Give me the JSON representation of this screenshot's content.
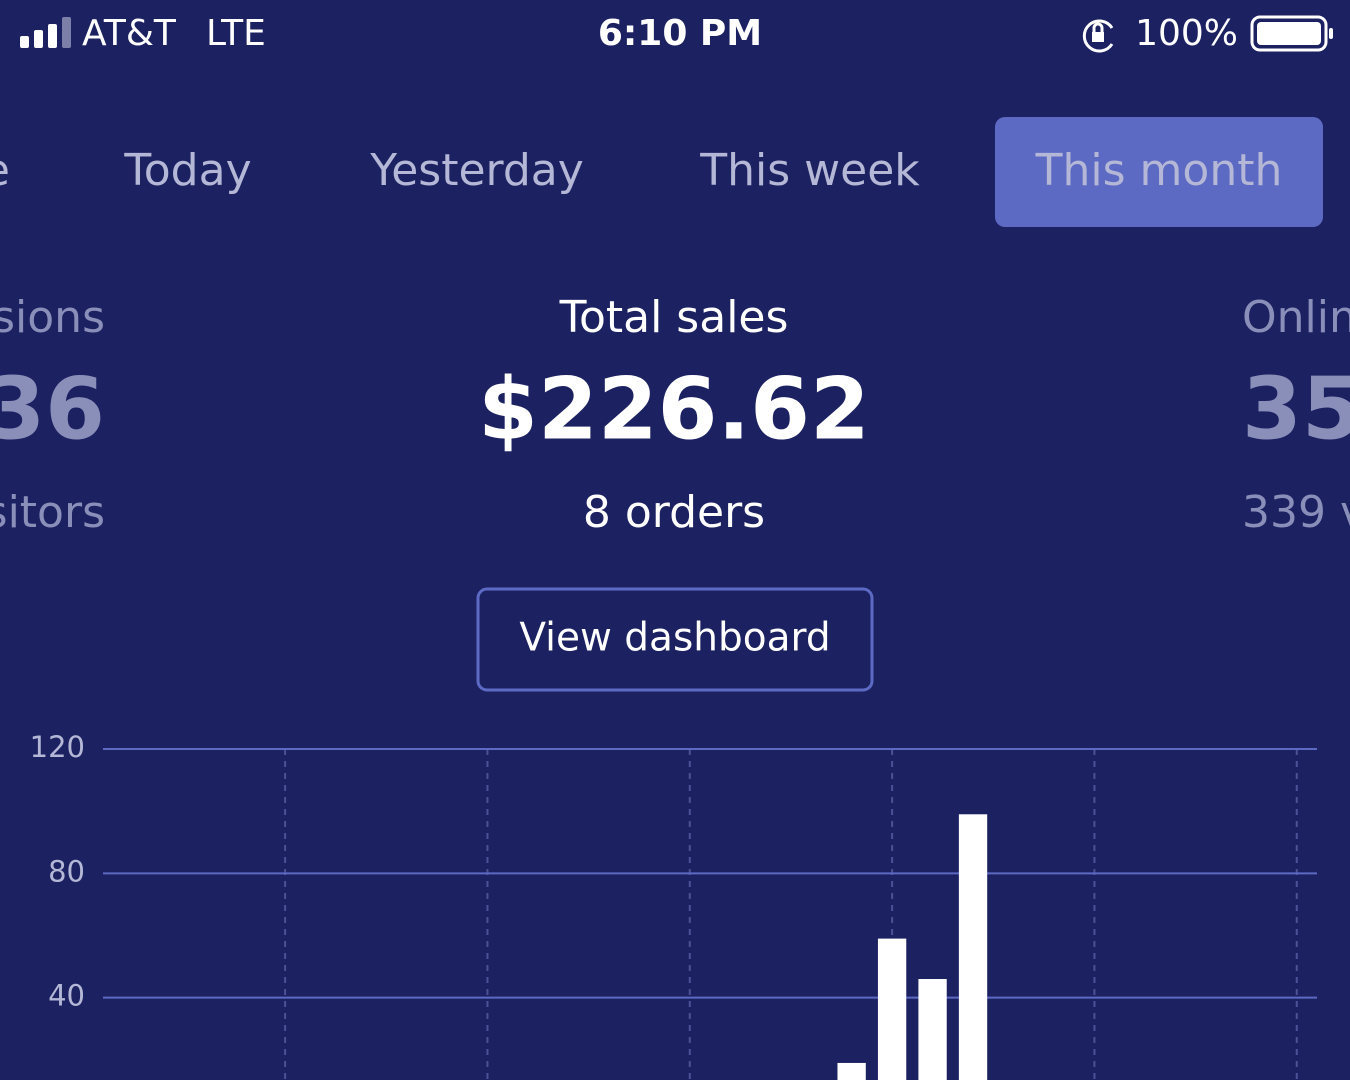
{
  "status_bar": {
    "carrier": "AT&T",
    "network": "LTE",
    "time": "6:10 PM",
    "battery": "100%"
  },
  "tabs": {
    "items": [
      "e",
      "Today",
      "Yesterday",
      "This week",
      "This month"
    ],
    "active": 4
  },
  "stats": {
    "left": {
      "title": "sions",
      "value": "36",
      "subtitle": "sitors"
    },
    "center": {
      "title": "Total sales",
      "value": "$226.62",
      "subtitle": "8 orders"
    },
    "right": {
      "title": "Onlin",
      "value": "35",
      "subtitle": "339 v"
    }
  },
  "button": {
    "label": "View dashboard"
  },
  "chart_data": {
    "type": "bar",
    "categories": [
      null,
      null,
      null,
      null,
      null,
      null,
      null,
      null,
      null,
      null,
      null,
      null,
      null,
      null,
      null,
      null,
      null,
      null,
      null,
      null,
      null,
      null,
      null,
      null,
      null,
      null,
      null,
      null,
      null,
      null
    ],
    "values": [
      0,
      0,
      0,
      0,
      0,
      0,
      0,
      0,
      0,
      0,
      0,
      0,
      0,
      0,
      0,
      0,
      0,
      0,
      19,
      59,
      46,
      99,
      0,
      0,
      0,
      0,
      0,
      0,
      0,
      0
    ],
    "color": "#ffffff",
    "ylim": [
      0,
      120
    ],
    "yticks": [
      40,
      80,
      120
    ],
    "grid": true
  }
}
